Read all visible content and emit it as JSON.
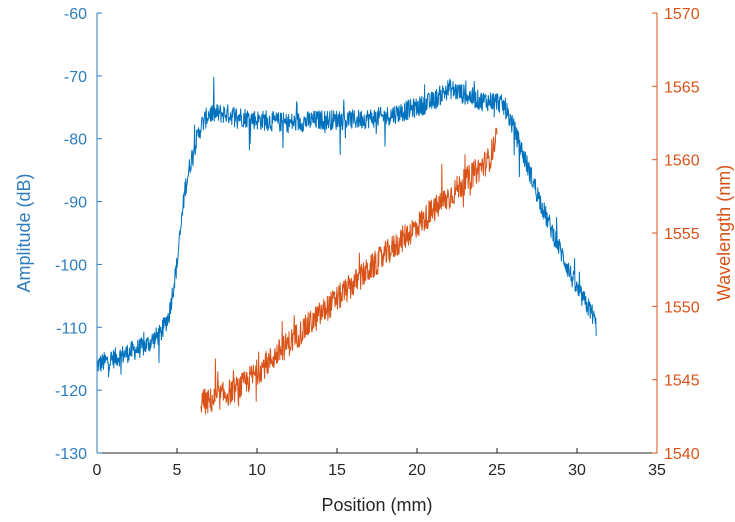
{
  "chart_data": {
    "type": "line",
    "title": "",
    "xlabel": "Position (mm)",
    "xlim": [
      0,
      35
    ],
    "xticks": [
      0,
      5,
      10,
      15,
      20,
      25,
      30,
      35
    ],
    "grid": false,
    "left_axis": {
      "label": "Amplitude (dB)",
      "lim": [
        -130,
        -60
      ],
      "ticks": [
        -130,
        -120,
        -110,
        -100,
        -90,
        -80,
        -70,
        -60
      ],
      "color": "#2e7dbf"
    },
    "right_axis": {
      "label": "Wavelength (nm)",
      "lim": [
        1540,
        1570
      ],
      "ticks": [
        1540,
        1545,
        1550,
        1555,
        1560,
        1565,
        1570
      ],
      "color": "#d95319"
    },
    "series": [
      {
        "axis": "left",
        "color": "#0072bd",
        "noise": 1.6,
        "x": [
          0,
          1,
          2,
          3,
          4,
          4.5,
          5,
          5.5,
          6,
          6.5,
          7,
          8,
          10,
          12,
          14,
          16,
          18,
          20,
          21,
          22,
          23,
          24,
          25,
          25.5,
          26,
          27,
          28,
          29,
          30,
          31,
          31.2
        ],
        "values": [
          -116,
          -115,
          -114,
          -113,
          -111,
          -108,
          -100,
          -88,
          -82,
          -78,
          -76,
          -76,
          -77,
          -77.5,
          -77,
          -77,
          -76.5,
          -75,
          -74,
          -72,
          -73,
          -74,
          -74,
          -75,
          -78,
          -85,
          -92,
          -98,
          -104,
          -108,
          -110
        ]
      },
      {
        "axis": "right",
        "color": "#d95319",
        "noise": 0.9,
        "x": [
          6.5,
          7,
          8,
          9,
          10,
          11,
          12,
          13,
          14,
          15,
          16,
          17,
          18,
          19,
          20,
          21,
          22,
          23,
          24,
          24.5,
          25
        ],
        "values": [
          1543.5,
          1543.5,
          1544,
          1544.5,
          1545.5,
          1546.5,
          1547.5,
          1548.5,
          1549.5,
          1550.5,
          1551.5,
          1552.5,
          1553.5,
          1554.5,
          1555.5,
          1556.5,
          1557.5,
          1558.5,
          1559.5,
          1560,
          1561.5
        ]
      }
    ]
  }
}
